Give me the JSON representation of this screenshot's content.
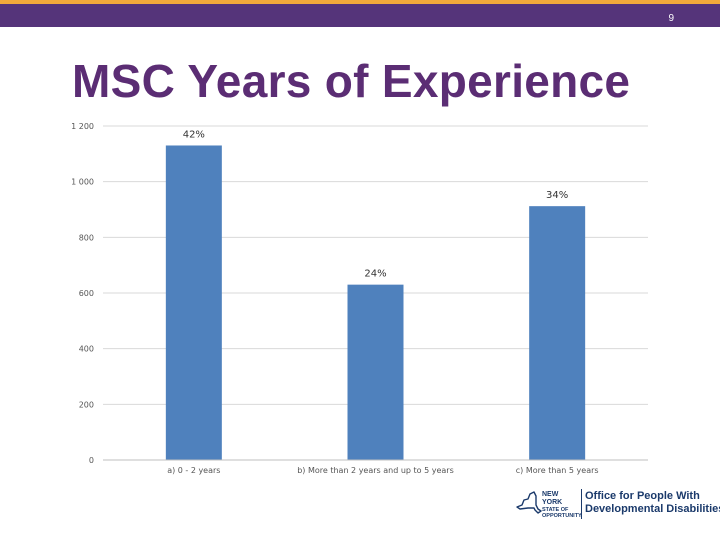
{
  "slide": {
    "number": "9",
    "title": "MSC Years of Experience"
  },
  "colors": {
    "bar": "#4f81bd",
    "grid": "#d9d9d9",
    "title": "#5b2d74",
    "header": "#55347a",
    "accent": "#f2a93b"
  },
  "chart_data": {
    "type": "bar",
    "title": "",
    "categories": [
      "a) 0 - 2 years",
      "b) More than 2 years and up to 5 years",
      "c) More than 5 years"
    ],
    "values": [
      1130,
      630,
      912
    ],
    "data_labels": [
      "42%",
      "24%",
      "34%"
    ],
    "ylim": [
      0,
      1200
    ],
    "yticks": [
      0,
      200,
      400,
      600,
      800,
      1000,
      1200
    ],
    "ytick_labels": [
      "0",
      "200",
      "400",
      "600",
      "800",
      "1 000",
      "1 200"
    ],
    "xlabel": "",
    "ylabel": "",
    "grid": true
  },
  "logo": {
    "name": "Office for People With Developmental Disabilities",
    "line1": "Office for People With",
    "line2": "Developmental Disabilities",
    "state_line1": "NEW YORK",
    "state_line2": "STATE OF OPPORTUNITY",
    "icon": "new-york-state-outline-icon"
  }
}
